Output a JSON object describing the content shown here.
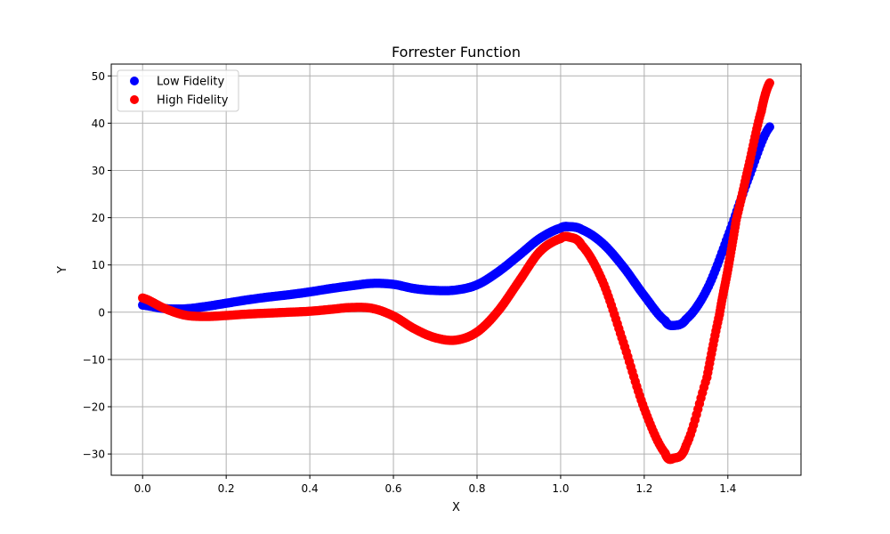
{
  "chart_data": {
    "type": "scatter",
    "title": "Forrester Function",
    "xlabel": "X",
    "ylabel": "Y",
    "xlim": [
      -0.075,
      1.575
    ],
    "ylim": [
      -34.5,
      52.5
    ],
    "xticks": [
      0.0,
      0.2,
      0.4,
      0.6,
      0.8,
      1.0,
      1.2,
      1.4
    ],
    "xtick_labels": [
      "0.0",
      "0.2",
      "0.4",
      "0.6",
      "0.8",
      "1.0",
      "1.2",
      "1.4"
    ],
    "yticks": [
      -30,
      -20,
      -10,
      0,
      10,
      20,
      30,
      40,
      50
    ],
    "ytick_labels": [
      "−30",
      "−20",
      "−10",
      "0",
      "10",
      "20",
      "30",
      "40",
      "50"
    ],
    "grid": true,
    "legend_position": "top-left",
    "series": [
      {
        "name": "Low Fidelity",
        "color": "#0000ff",
        "x": [
          0.0,
          0.05,
          0.1,
          0.15,
          0.2,
          0.25,
          0.3,
          0.35,
          0.4,
          0.45,
          0.5,
          0.55,
          0.6,
          0.65,
          0.7,
          0.75,
          0.8,
          0.85,
          0.9,
          0.95,
          1.0,
          1.02,
          1.05,
          1.1,
          1.15,
          1.2,
          1.25,
          1.27,
          1.3,
          1.35,
          1.4,
          1.45,
          1.5
        ],
        "y": [
          1.5,
          0.8,
          0.7,
          1.2,
          1.9,
          2.6,
          3.2,
          3.7,
          4.3,
          5.0,
          5.6,
          6.1,
          5.9,
          5.0,
          4.6,
          4.7,
          5.8,
          8.5,
          12.0,
          15.6,
          17.8,
          18.1,
          17.5,
          14.6,
          9.6,
          3.5,
          -1.8,
          -2.8,
          -1.5,
          4.8,
          16.0,
          28.5,
          39.2
        ]
      },
      {
        "name": "High Fidelity",
        "color": "#ff0000",
        "x": [
          0.0,
          0.05,
          0.1,
          0.15,
          0.2,
          0.25,
          0.3,
          0.35,
          0.4,
          0.45,
          0.5,
          0.55,
          0.6,
          0.65,
          0.7,
          0.75,
          0.8,
          0.85,
          0.9,
          0.95,
          1.0,
          1.02,
          1.05,
          1.1,
          1.15,
          1.2,
          1.25,
          1.27,
          1.3,
          1.35,
          1.38,
          1.4,
          1.42,
          1.45,
          1.48,
          1.5
        ],
        "y": [
          3.0,
          0.9,
          -0.6,
          -0.9,
          -0.7,
          -0.4,
          -0.2,
          0.0,
          0.2,
          0.6,
          1.0,
          0.8,
          -0.8,
          -3.5,
          -5.4,
          -5.9,
          -4.2,
          0.2,
          6.5,
          12.8,
          15.6,
          15.9,
          14.2,
          6.6,
          -6.4,
          -20.4,
          -29.8,
          -30.9,
          -28.2,
          -13.8,
          -0.5,
          9.0,
          19.5,
          31.0,
          42.5,
          48.5
        ]
      }
    ]
  }
}
